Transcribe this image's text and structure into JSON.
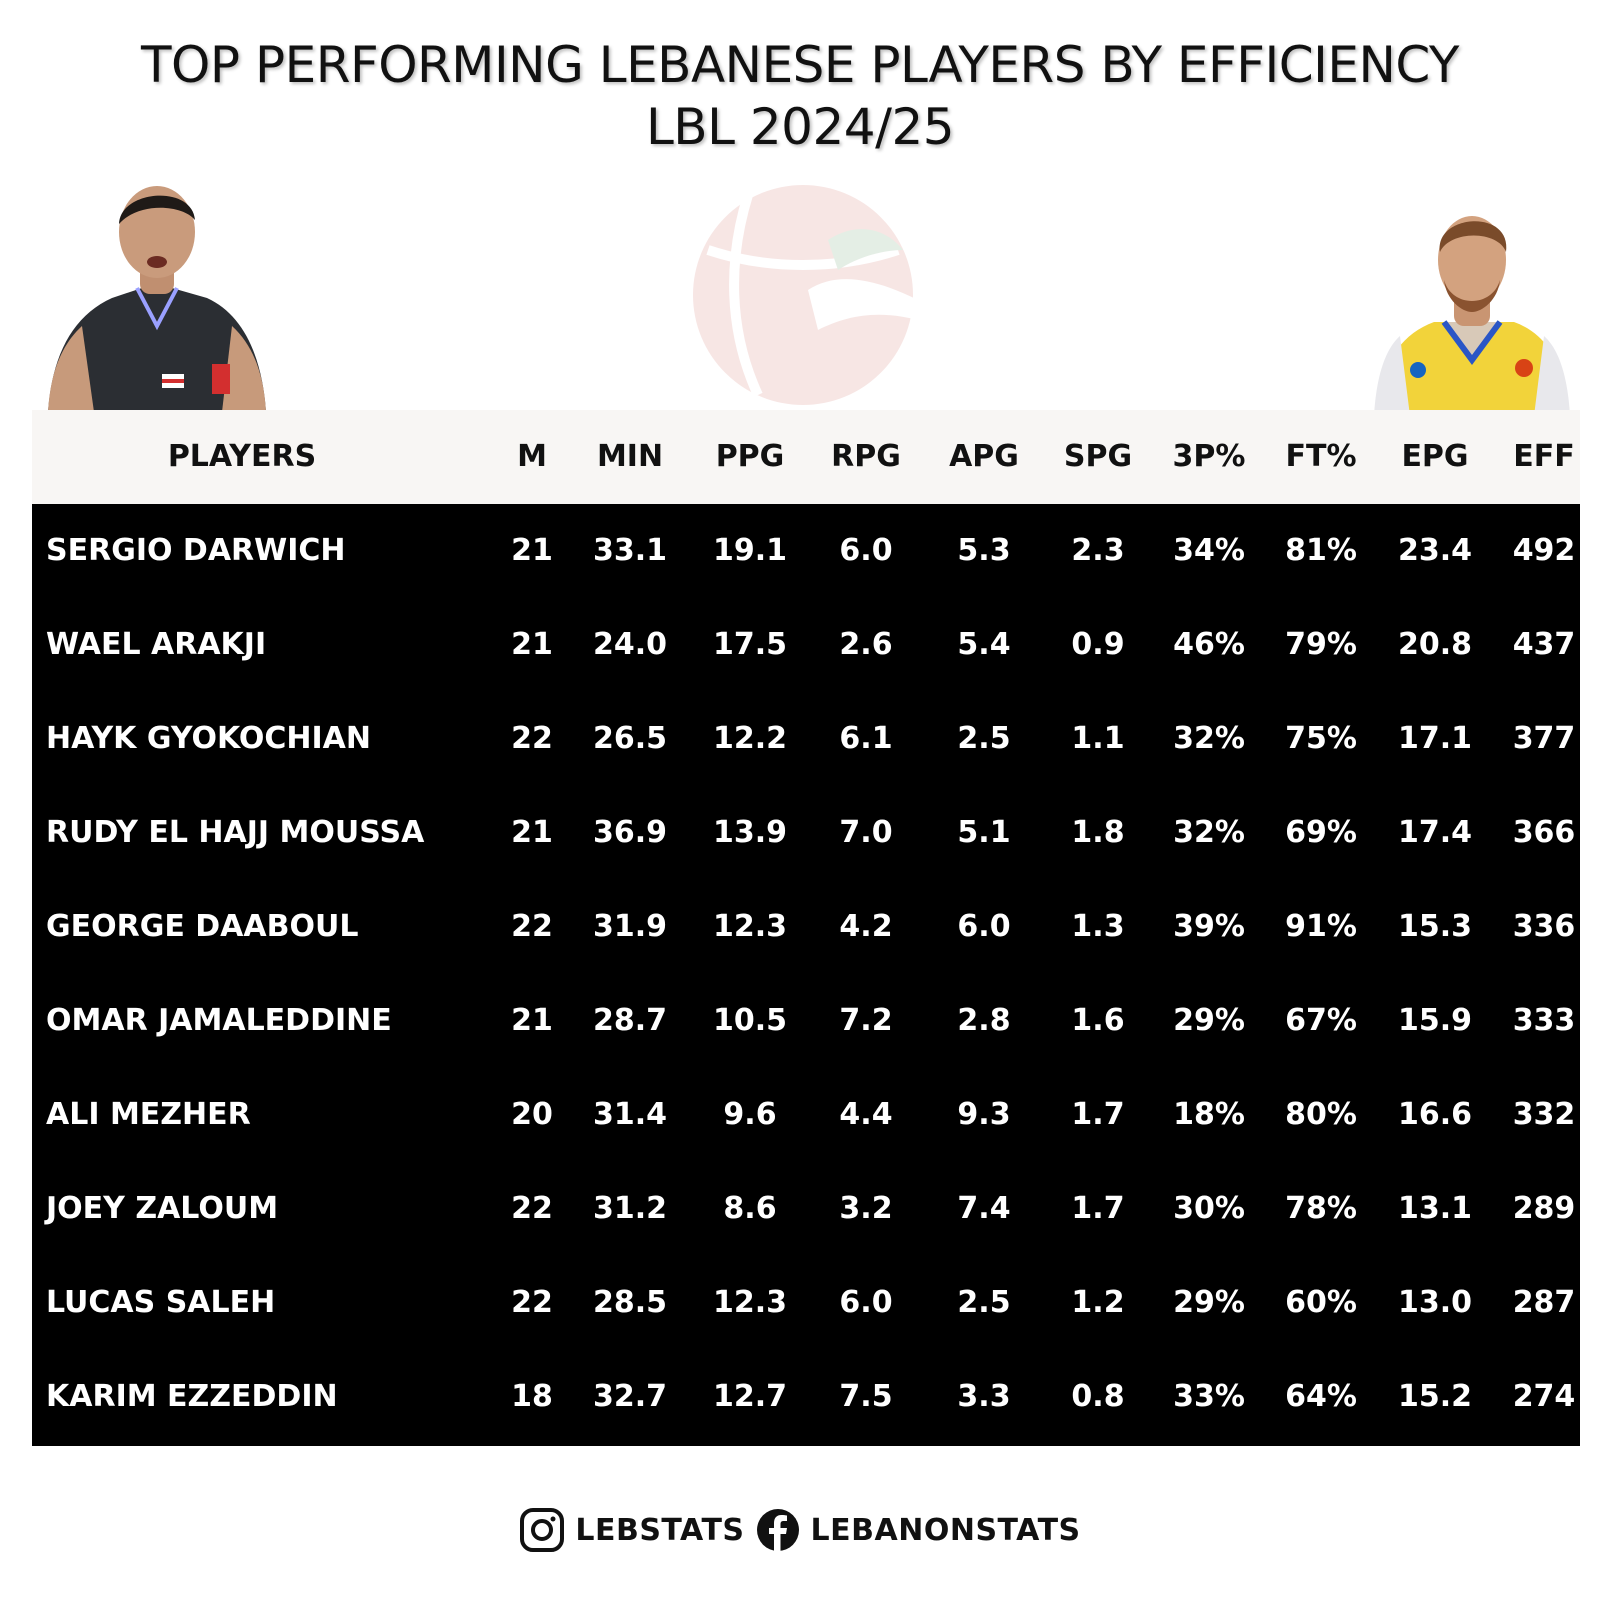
{
  "title": {
    "line1": "TOP PERFORMING LEBANESE PLAYERS BY EFFICIENCY",
    "line2": "LBL 2024/25"
  },
  "table": {
    "headers": [
      "PLAYERS",
      "M",
      "MIN",
      "PPG",
      "RPG",
      "APG",
      "SPG",
      "3P%",
      "FT%",
      "EPG",
      "EFF"
    ],
    "rows": [
      [
        "SERGIO DARWICH",
        "21",
        "33.1",
        "19.1",
        "6.0",
        "5.3",
        "2.3",
        "34%",
        "81%",
        "23.4",
        "492"
      ],
      [
        "WAEL ARAKJI",
        "21",
        "24.0",
        "17.5",
        "2.6",
        "5.4",
        "0.9",
        "46%",
        "79%",
        "20.8",
        "437"
      ],
      [
        "HAYK GYOKOCHIAN",
        "22",
        "26.5",
        "12.2",
        "6.1",
        "2.5",
        "1.1",
        "32%",
        "75%",
        "17.1",
        "377"
      ],
      [
        "RUDY EL HAJJ MOUSSA",
        "21",
        "36.9",
        "13.9",
        "7.0",
        "5.1",
        "1.8",
        "32%",
        "69%",
        "17.4",
        "366"
      ],
      [
        "GEORGE DAABOUL",
        "22",
        "31.9",
        "12.3",
        "4.2",
        "6.0",
        "1.3",
        "39%",
        "91%",
        "15.3",
        "336"
      ],
      [
        "OMAR JAMALEDDINE",
        "21",
        "28.7",
        "10.5",
        "7.2",
        "2.8",
        "1.6",
        "29%",
        "67%",
        "15.9",
        "333"
      ],
      [
        "ALI MEZHER",
        "20",
        "31.4",
        "9.6",
        "4.4",
        "9.3",
        "1.7",
        "18%",
        "80%",
        "16.6",
        "332"
      ],
      [
        "JOEY ZALOUM",
        "22",
        "31.2",
        "8.6",
        "3.2",
        "7.4",
        "1.7",
        "30%",
        "78%",
        "13.1",
        "289"
      ],
      [
        "LUCAS SALEH",
        "22",
        "28.5",
        "12.3",
        "6.0",
        "2.5",
        "1.2",
        "29%",
        "60%",
        "13.0",
        "287"
      ],
      [
        "KARIM EZZEDDIN",
        "18",
        "32.7",
        "12.7",
        "7.5",
        "3.3",
        "0.8",
        "33%",
        "64%",
        "15.2",
        "274"
      ]
    ]
  },
  "footer": {
    "instagram_handle": "LEBSTATS",
    "facebook_handle": "LEBANONSTATS",
    "instagram_icon": "instagram-icon",
    "facebook_icon": "facebook-icon"
  },
  "colors": {
    "table_background": "#000000",
    "header_background": "#f8f6f4",
    "watermark_accent": "#c0392b"
  }
}
